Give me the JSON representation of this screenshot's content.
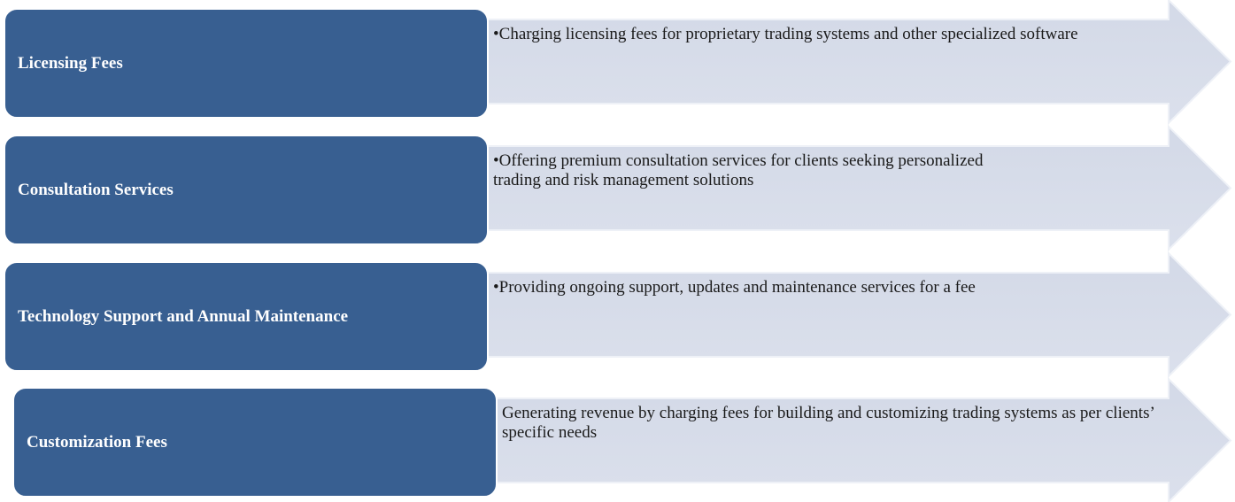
{
  "items": [
    {
      "label": "Licensing Fees",
      "description": "•Charging licensing fees for proprietary trading systems and other specialized software"
    },
    {
      "label": "Consultation Services",
      "description": "•Offering premium consultation services for clients seeking personalized trading and risk management solutions"
    },
    {
      "label": "Technology Support and Annual Maintenance",
      "description": "•Providing ongoing support, updates and maintenance services for a fee"
    },
    {
      "label": "Customization Fees",
      "description": "Generating revenue by charging fees for building and customizing trading systems as per clients’ specific needs"
    }
  ]
}
